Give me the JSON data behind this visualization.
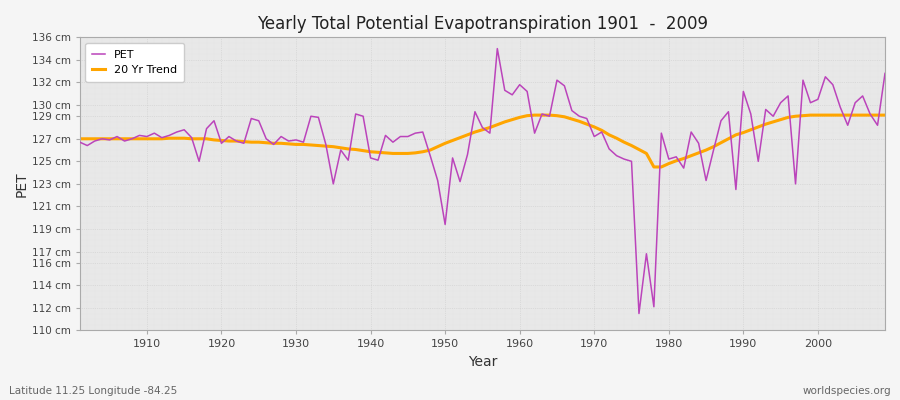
{
  "title": "Yearly Total Potential Evapotranspiration 1901  -  2009",
  "xlabel": "Year",
  "ylabel": "PET",
  "subtitle_left": "Latitude 11.25 Longitude -84.25",
  "subtitle_right": "worldspecies.org",
  "pet_color": "#bb44bb",
  "trend_color": "#ffa500",
  "bg_color": "#e8e8e8",
  "fig_bg_color": "#f5f5f5",
  "years": [
    1901,
    1902,
    1903,
    1904,
    1905,
    1906,
    1907,
    1908,
    1909,
    1910,
    1911,
    1912,
    1913,
    1914,
    1915,
    1916,
    1917,
    1918,
    1919,
    1920,
    1921,
    1922,
    1923,
    1924,
    1925,
    1926,
    1927,
    1928,
    1929,
    1930,
    1931,
    1932,
    1933,
    1934,
    1935,
    1936,
    1937,
    1938,
    1939,
    1940,
    1941,
    1942,
    1943,
    1944,
    1945,
    1946,
    1947,
    1948,
    1949,
    1950,
    1951,
    1952,
    1953,
    1954,
    1955,
    1956,
    1957,
    1958,
    1959,
    1960,
    1961,
    1962,
    1963,
    1964,
    1965,
    1966,
    1967,
    1968,
    1969,
    1970,
    1971,
    1972,
    1973,
    1974,
    1975,
    1976,
    1977,
    1978,
    1979,
    1980,
    1981,
    1982,
    1983,
    1984,
    1985,
    1986,
    1987,
    1988,
    1989,
    1990,
    1991,
    1992,
    1993,
    1994,
    1995,
    1996,
    1997,
    1998,
    1999,
    2000,
    2001,
    2002,
    2003,
    2004,
    2005,
    2006,
    2007,
    2008,
    2009
  ],
  "pet_values": [
    126.7,
    126.4,
    126.8,
    127.0,
    126.9,
    127.2,
    126.8,
    127.0,
    127.3,
    127.2,
    127.5,
    127.1,
    127.3,
    127.6,
    127.8,
    127.1,
    125.0,
    127.9,
    128.6,
    126.6,
    127.2,
    126.8,
    126.6,
    128.8,
    128.6,
    127.0,
    126.5,
    127.2,
    126.8,
    126.9,
    126.7,
    129.0,
    128.9,
    126.5,
    123.0,
    126.0,
    125.1,
    129.2,
    129.0,
    125.3,
    125.1,
    127.3,
    126.7,
    127.2,
    127.2,
    127.5,
    127.6,
    125.5,
    123.3,
    119.4,
    125.3,
    123.2,
    125.6,
    129.4,
    128.0,
    127.5,
    135.0,
    131.3,
    130.9,
    131.8,
    131.2,
    127.5,
    129.2,
    129.0,
    132.2,
    131.7,
    129.5,
    129.0,
    128.8,
    127.2,
    127.6,
    126.1,
    125.5,
    125.2,
    125.0,
    111.5,
    116.8,
    112.1,
    127.5,
    125.2,
    125.4,
    124.4,
    127.6,
    126.6,
    123.3,
    126.0,
    128.6,
    129.4,
    122.5,
    131.2,
    129.2,
    125.0,
    129.6,
    129.0,
    130.2,
    130.8,
    123.0,
    132.2,
    130.2,
    130.5,
    132.5,
    131.8,
    129.8,
    128.2,
    130.2,
    130.8,
    129.2,
    128.2,
    132.8
  ],
  "trend_values": [
    127.0,
    127.0,
    127.0,
    127.0,
    127.0,
    127.0,
    127.0,
    127.0,
    127.0,
    127.0,
    127.0,
    127.0,
    127.05,
    127.05,
    127.05,
    127.0,
    127.0,
    127.0,
    126.9,
    126.85,
    126.8,
    126.8,
    126.75,
    126.7,
    126.7,
    126.65,
    126.6,
    126.6,
    126.55,
    126.5,
    126.5,
    126.45,
    126.4,
    126.35,
    126.3,
    126.2,
    126.1,
    126.05,
    125.95,
    125.85,
    125.8,
    125.75,
    125.7,
    125.7,
    125.7,
    125.75,
    125.85,
    126.0,
    126.3,
    126.6,
    126.85,
    127.1,
    127.35,
    127.6,
    127.8,
    128.0,
    128.25,
    128.5,
    128.7,
    128.9,
    129.05,
    129.1,
    129.1,
    129.1,
    129.05,
    128.95,
    128.75,
    128.55,
    128.3,
    128.05,
    127.75,
    127.35,
    127.05,
    126.7,
    126.4,
    126.05,
    125.7,
    124.5,
    124.5,
    124.8,
    125.05,
    125.25,
    125.5,
    125.75,
    126.0,
    126.3,
    126.65,
    127.0,
    127.35,
    127.55,
    127.8,
    128.05,
    128.3,
    128.5,
    128.7,
    128.9,
    129.0,
    129.05,
    129.1,
    129.1,
    129.1,
    129.1,
    129.1,
    129.1,
    129.1,
    129.1,
    129.1,
    129.1,
    129.1
  ],
  "ylim": [
    110,
    136
  ],
  "ytick_vals": [
    110,
    112,
    114,
    116,
    117,
    119,
    121,
    123,
    125,
    127,
    129,
    130,
    132,
    134,
    136
  ],
  "ytick_labels": [
    "110 cm",
    "112 cm",
    "114 cm",
    "116 cm",
    "117 cm",
    "119 cm",
    "121 cm",
    "123 cm",
    "125 cm",
    "127 cm",
    "129 cm",
    "130 cm",
    "132 cm",
    "134 cm",
    "136 cm"
  ],
  "xticks": [
    1910,
    1920,
    1930,
    1940,
    1950,
    1960,
    1970,
    1980,
    1990,
    2000
  ],
  "xlim": [
    1901,
    2009
  ]
}
